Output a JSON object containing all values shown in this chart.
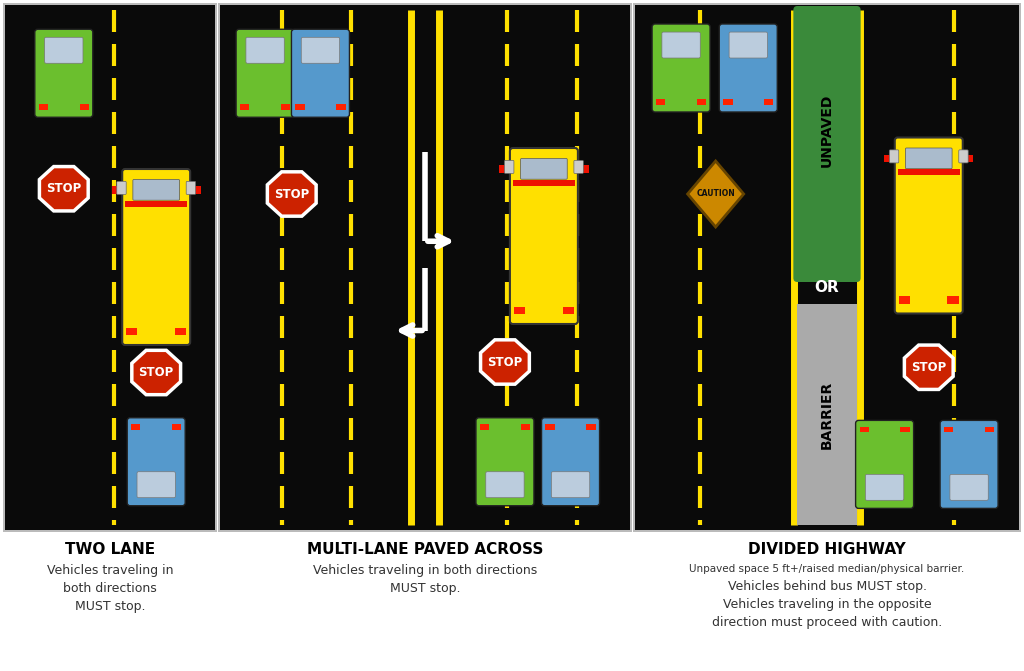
{
  "bg": "#ffffff",
  "road_bg": "#0a0a0a",
  "border_color": "#bbbbbb",
  "yellow": "#FFE000",
  "stop_red": "#CC2200",
  "green_car": "#6BBF2E",
  "blue_car": "#5599CC",
  "bus_yellow": "#FFE000",
  "green_median": "#3A8A3A",
  "gray_barrier": "#AAAAAA",
  "caution_gold": "#CC8800",
  "white": "#FFFFFF",
  "panels": [
    {
      "title": "TWO LANE",
      "subtitle": "Vehicles traveling in\nboth directions\nMUST stop.",
      "subtitle_bold_word": "MUST"
    },
    {
      "title": "MULTI-LANE PAVED ACROSS",
      "subtitle": "Vehicles traveling in both directions\nMUST stop.",
      "subtitle_bold_word": "MUST"
    },
    {
      "title": "DIVIDED HIGHWAY",
      "subtitle_line1": "Unpaved space 5 ft+/raised median/physical barrier.",
      "subtitle_line2": "Vehicles behind bus MUST stop.\nVehicles traveling in the opposite\ndirection must proceed with caution."
    }
  ]
}
